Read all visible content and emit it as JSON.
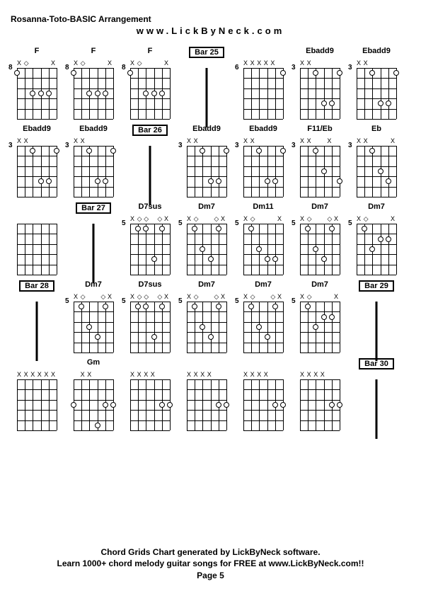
{
  "title": "Rosanna-Toto-BASIC Arrangement",
  "website": "www.LickByNeck.com",
  "footer_line1": "Chord Grids Chart generated by LickByNeck software.",
  "footer_line2": "Learn 1000+ chord melody guitar songs for FREE at www.LickByNeck.com!!",
  "page_label": "Page 5",
  "string_count": 6,
  "fret_count": 5,
  "cells": [
    {
      "type": "chord",
      "label": "F",
      "fret": "8",
      "marks": [
        "X",
        "◇",
        "",
        "",
        "",
        "X"
      ],
      "dots": [
        [
          1,
          0
        ],
        [
          3,
          2
        ],
        [
          3,
          3
        ],
        [
          3,
          4
        ]
      ]
    },
    {
      "type": "chord",
      "label": "F",
      "fret": "8",
      "marks": [
        "X",
        "◇",
        "",
        "",
        "",
        "X"
      ],
      "dots": [
        [
          1,
          0
        ],
        [
          3,
          2
        ],
        [
          3,
          3
        ],
        [
          3,
          4
        ]
      ]
    },
    {
      "type": "chord",
      "label": "F",
      "fret": "8",
      "marks": [
        "X",
        "◇",
        "",
        "",
        "",
        "X"
      ],
      "dots": [
        [
          1,
          0
        ],
        [
          3,
          2
        ],
        [
          3,
          3
        ],
        [
          3,
          4
        ]
      ]
    },
    {
      "type": "bar",
      "label": "Bar 25"
    },
    {
      "type": "chord",
      "label": "",
      "fret": "6",
      "marks": [
        "X",
        "X",
        "X",
        "X",
        "X",
        ""
      ],
      "dots": [
        [
          1,
          5
        ]
      ]
    },
    {
      "type": "chord",
      "label": "Ebadd9",
      "fret": "3",
      "marks": [
        "X",
        "X",
        "",
        "",
        "",
        ""
      ],
      "dots": [
        [
          1,
          2
        ],
        [
          1,
          5
        ],
        [
          4,
          3
        ],
        [
          4,
          4
        ]
      ]
    },
    {
      "type": "chord",
      "label": "Ebadd9",
      "fret": "3",
      "marks": [
        "X",
        "X",
        "",
        "",
        "",
        ""
      ],
      "dots": [
        [
          1,
          2
        ],
        [
          1,
          5
        ],
        [
          4,
          3
        ],
        [
          4,
          4
        ]
      ]
    },
    {
      "type": "chord",
      "label": "Ebadd9",
      "fret": "3",
      "marks": [
        "X",
        "X",
        "",
        "",
        "",
        ""
      ],
      "dots": [
        [
          1,
          2
        ],
        [
          1,
          5
        ],
        [
          4,
          3
        ],
        [
          4,
          4
        ]
      ]
    },
    {
      "type": "chord",
      "label": "Ebadd9",
      "fret": "3",
      "marks": [
        "X",
        "X",
        "",
        "",
        "",
        ""
      ],
      "dots": [
        [
          1,
          2
        ],
        [
          1,
          5
        ],
        [
          4,
          3
        ],
        [
          4,
          4
        ]
      ]
    },
    {
      "type": "bar",
      "label": "Bar 26"
    },
    {
      "type": "chord",
      "label": "Ebadd9",
      "fret": "3",
      "marks": [
        "X",
        "X",
        "",
        "",
        "",
        ""
      ],
      "dots": [
        [
          1,
          2
        ],
        [
          1,
          5
        ],
        [
          4,
          3
        ],
        [
          4,
          4
        ]
      ]
    },
    {
      "type": "chord",
      "label": "Ebadd9",
      "fret": "3",
      "marks": [
        "X",
        "X",
        "",
        "",
        "",
        ""
      ],
      "dots": [
        [
          1,
          2
        ],
        [
          1,
          5
        ],
        [
          4,
          3
        ],
        [
          4,
          4
        ]
      ]
    },
    {
      "type": "chord",
      "label": "F11/Eb",
      "fret": "3",
      "marks": [
        "X",
        "X",
        "",
        "",
        "X",
        ""
      ],
      "dots": [
        [
          1,
          2
        ],
        [
          3,
          3
        ],
        [
          4,
          5
        ]
      ]
    },
    {
      "type": "chord",
      "label": "Eb",
      "fret": "3",
      "marks": [
        "X",
        "X",
        "",
        "",
        "",
        "X"
      ],
      "dots": [
        [
          1,
          2
        ],
        [
          3,
          3
        ],
        [
          4,
          4
        ]
      ]
    },
    {
      "type": "chord",
      "label": "",
      "fret": "",
      "marks": [
        "",
        "",
        "",
        "",
        "",
        ""
      ],
      "dots": []
    },
    {
      "type": "bar",
      "label": "Bar 27"
    },
    {
      "type": "chord",
      "label": "D7sus",
      "fret": "5",
      "marks": [
        "X",
        "◇",
        "◇",
        "",
        "◇",
        "X"
      ],
      "dots": [
        [
          1,
          1
        ],
        [
          1,
          2
        ],
        [
          1,
          4
        ],
        [
          4,
          3
        ]
      ]
    },
    {
      "type": "chord",
      "label": "Dm7",
      "fret": "5",
      "marks": [
        "X",
        "◇",
        "",
        "",
        "◇",
        "X"
      ],
      "dots": [
        [
          1,
          1
        ],
        [
          1,
          4
        ],
        [
          3,
          2
        ],
        [
          4,
          3
        ]
      ]
    },
    {
      "type": "chord",
      "label": "Dm11",
      "fret": "5",
      "marks": [
        "X",
        "◇",
        "",
        "",
        "",
        "X"
      ],
      "dots": [
        [
          1,
          1
        ],
        [
          3,
          2
        ],
        [
          4,
          3
        ],
        [
          4,
          4
        ]
      ]
    },
    {
      "type": "chord",
      "label": "Dm7",
      "fret": "5",
      "marks": [
        "X",
        "◇",
        "",
        "",
        "◇",
        "X"
      ],
      "dots": [
        [
          1,
          1
        ],
        [
          1,
          4
        ],
        [
          3,
          2
        ],
        [
          4,
          3
        ]
      ]
    },
    {
      "type": "chord",
      "label": "Dm7",
      "fret": "5",
      "marks": [
        "X",
        "◇",
        "",
        "",
        "",
        "X"
      ],
      "dots": [
        [
          1,
          1
        ],
        [
          2,
          3
        ],
        [
          2,
          4
        ],
        [
          3,
          2
        ]
      ]
    },
    {
      "type": "bar",
      "label": "Bar 28"
    },
    {
      "type": "chord",
      "label": "Dm7",
      "fret": "5",
      "marks": [
        "X",
        "◇",
        "",
        "",
        "◇",
        "X"
      ],
      "dots": [
        [
          1,
          1
        ],
        [
          1,
          4
        ],
        [
          3,
          2
        ],
        [
          4,
          3
        ]
      ]
    },
    {
      "type": "chord",
      "label": "D7sus",
      "fret": "5",
      "marks": [
        "X",
        "◇",
        "◇",
        "",
        "◇",
        "X"
      ],
      "dots": [
        [
          1,
          1
        ],
        [
          1,
          2
        ],
        [
          1,
          4
        ],
        [
          4,
          3
        ]
      ]
    },
    {
      "type": "chord",
      "label": "Dm7",
      "fret": "5",
      "marks": [
        "X",
        "◇",
        "",
        "",
        "◇",
        "X"
      ],
      "dots": [
        [
          1,
          1
        ],
        [
          1,
          4
        ],
        [
          3,
          2
        ],
        [
          4,
          3
        ]
      ]
    },
    {
      "type": "chord",
      "label": "Dm7",
      "fret": "5",
      "marks": [
        "X",
        "◇",
        "",
        "",
        "◇",
        "X"
      ],
      "dots": [
        [
          1,
          1
        ],
        [
          1,
          4
        ],
        [
          3,
          2
        ],
        [
          4,
          3
        ]
      ]
    },
    {
      "type": "chord",
      "label": "Dm7",
      "fret": "5",
      "marks": [
        "X",
        "◇",
        "",
        "",
        "",
        "X"
      ],
      "dots": [
        [
          1,
          1
        ],
        [
          2,
          3
        ],
        [
          2,
          4
        ],
        [
          3,
          2
        ]
      ]
    },
    {
      "type": "bar",
      "label": "Bar 29"
    },
    {
      "type": "chord",
      "label": "",
      "fret": "",
      "marks": [
        "X",
        "X",
        "X",
        "X",
        "X",
        "X"
      ],
      "dots": []
    },
    {
      "type": "chord",
      "label": "Gm",
      "fret": "",
      "marks": [
        "",
        "X",
        "X",
        "",
        "",
        ""
      ],
      "dots": [
        [
          3,
          0
        ],
        [
          3,
          4
        ],
        [
          3,
          5
        ],
        [
          5,
          3
        ]
      ]
    },
    {
      "type": "chord",
      "label": "",
      "fret": "",
      "marks": [
        "X",
        "X",
        "X",
        "X",
        "",
        ""
      ],
      "dots": [
        [
          3,
          4
        ],
        [
          3,
          5
        ]
      ]
    },
    {
      "type": "chord",
      "label": "",
      "fret": "",
      "marks": [
        "X",
        "X",
        "X",
        "X",
        "",
        ""
      ],
      "dots": [
        [
          3,
          4
        ],
        [
          3,
          5
        ]
      ]
    },
    {
      "type": "chord",
      "label": "",
      "fret": "",
      "marks": [
        "X",
        "X",
        "X",
        "X",
        "",
        ""
      ],
      "dots": [
        [
          3,
          4
        ],
        [
          3,
          5
        ]
      ]
    },
    {
      "type": "chord",
      "label": "",
      "fret": "",
      "marks": [
        "X",
        "X",
        "X",
        "X",
        "",
        ""
      ],
      "dots": [
        [
          3,
          4
        ],
        [
          3,
          5
        ]
      ]
    },
    {
      "type": "bar",
      "label": "Bar 30"
    }
  ]
}
